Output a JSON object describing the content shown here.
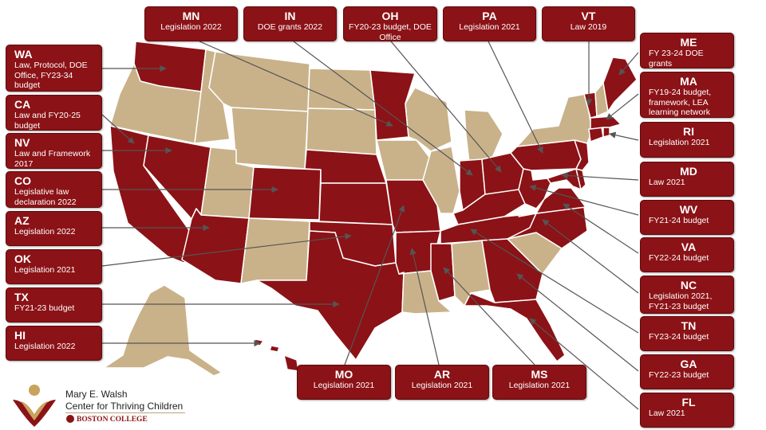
{
  "colors": {
    "policy": "#8b1216",
    "no_policy": "#c9b28a",
    "border": "#ffffff",
    "arrow": "#555555"
  },
  "states_policy": [
    "WA",
    "CA",
    "NV",
    "CO",
    "AZ",
    "OK",
    "TX",
    "HI",
    "MO",
    "AR",
    "MS",
    "FL",
    "GA",
    "TN",
    "NC",
    "VA",
    "WV",
    "MD",
    "RI",
    "MA",
    "ME",
    "VT",
    "PA",
    "OH",
    "IN",
    "MN",
    "KS",
    "NE",
    "DE",
    "NJ",
    "CT",
    "KY"
  ],
  "labels": {
    "WA": {
      "abbr": "WA",
      "desc": "Law, Protocol, DOE Office, FY23-34 budget"
    },
    "CA": {
      "abbr": "CA",
      "desc": "Law and FY20-25 budget"
    },
    "NV": {
      "abbr": "NV",
      "desc": "Law and Framework 2017"
    },
    "CO": {
      "abbr": "CO",
      "desc": "Legislative law declaration 2022"
    },
    "AZ": {
      "abbr": "AZ",
      "desc": "Legislation 2022"
    },
    "OK": {
      "abbr": "OK",
      "desc": "Legislation 2021"
    },
    "TX": {
      "abbr": "TX",
      "desc": "FY21-23 budget"
    },
    "HI": {
      "abbr": "HI",
      "desc": "Legislation 2022"
    },
    "MN": {
      "abbr": "MN",
      "desc": "Legislation 2022"
    },
    "IN": {
      "abbr": "IN",
      "desc": "DOE grants 2022"
    },
    "OH": {
      "abbr": "OH",
      "desc": "FY20-23 budget, DOE Office"
    },
    "PA": {
      "abbr": "PA",
      "desc": "Legislation 2021"
    },
    "VT": {
      "abbr": "VT",
      "desc": "Law 2019"
    },
    "ME": {
      "abbr": "ME",
      "desc": "FY 23-24  DOE grants"
    },
    "MA": {
      "abbr": "MA",
      "desc": "FY19-24 budget, framework, LEA learning network"
    },
    "RI": {
      "abbr": "RI",
      "desc": "Legislation 2021"
    },
    "MD": {
      "abbr": "MD",
      "desc": "Law 2021"
    },
    "WV": {
      "abbr": "WV",
      "desc": "FY21-24 budget"
    },
    "VA": {
      "abbr": "VA",
      "desc": "FY22-24 budget"
    },
    "NC": {
      "abbr": "NC",
      "desc": "Legislation 2021, FY21-23 budget"
    },
    "TN": {
      "abbr": "TN",
      "desc": "FY23-24 budget"
    },
    "GA": {
      "abbr": "GA",
      "desc": "FY22-23 budget"
    },
    "FL": {
      "abbr": "FL",
      "desc": "Law 2021"
    },
    "MO": {
      "abbr": "MO",
      "desc": "Legislation 2021"
    },
    "AR": {
      "abbr": "AR",
      "desc": "Legislation 2021"
    },
    "MS": {
      "abbr": "MS",
      "desc": "Legislation 2021"
    }
  },
  "logo": {
    "line1": "Mary E. Walsh",
    "line2": "Center for Thriving Children",
    "line3": "BOSTON COLLEGE"
  }
}
